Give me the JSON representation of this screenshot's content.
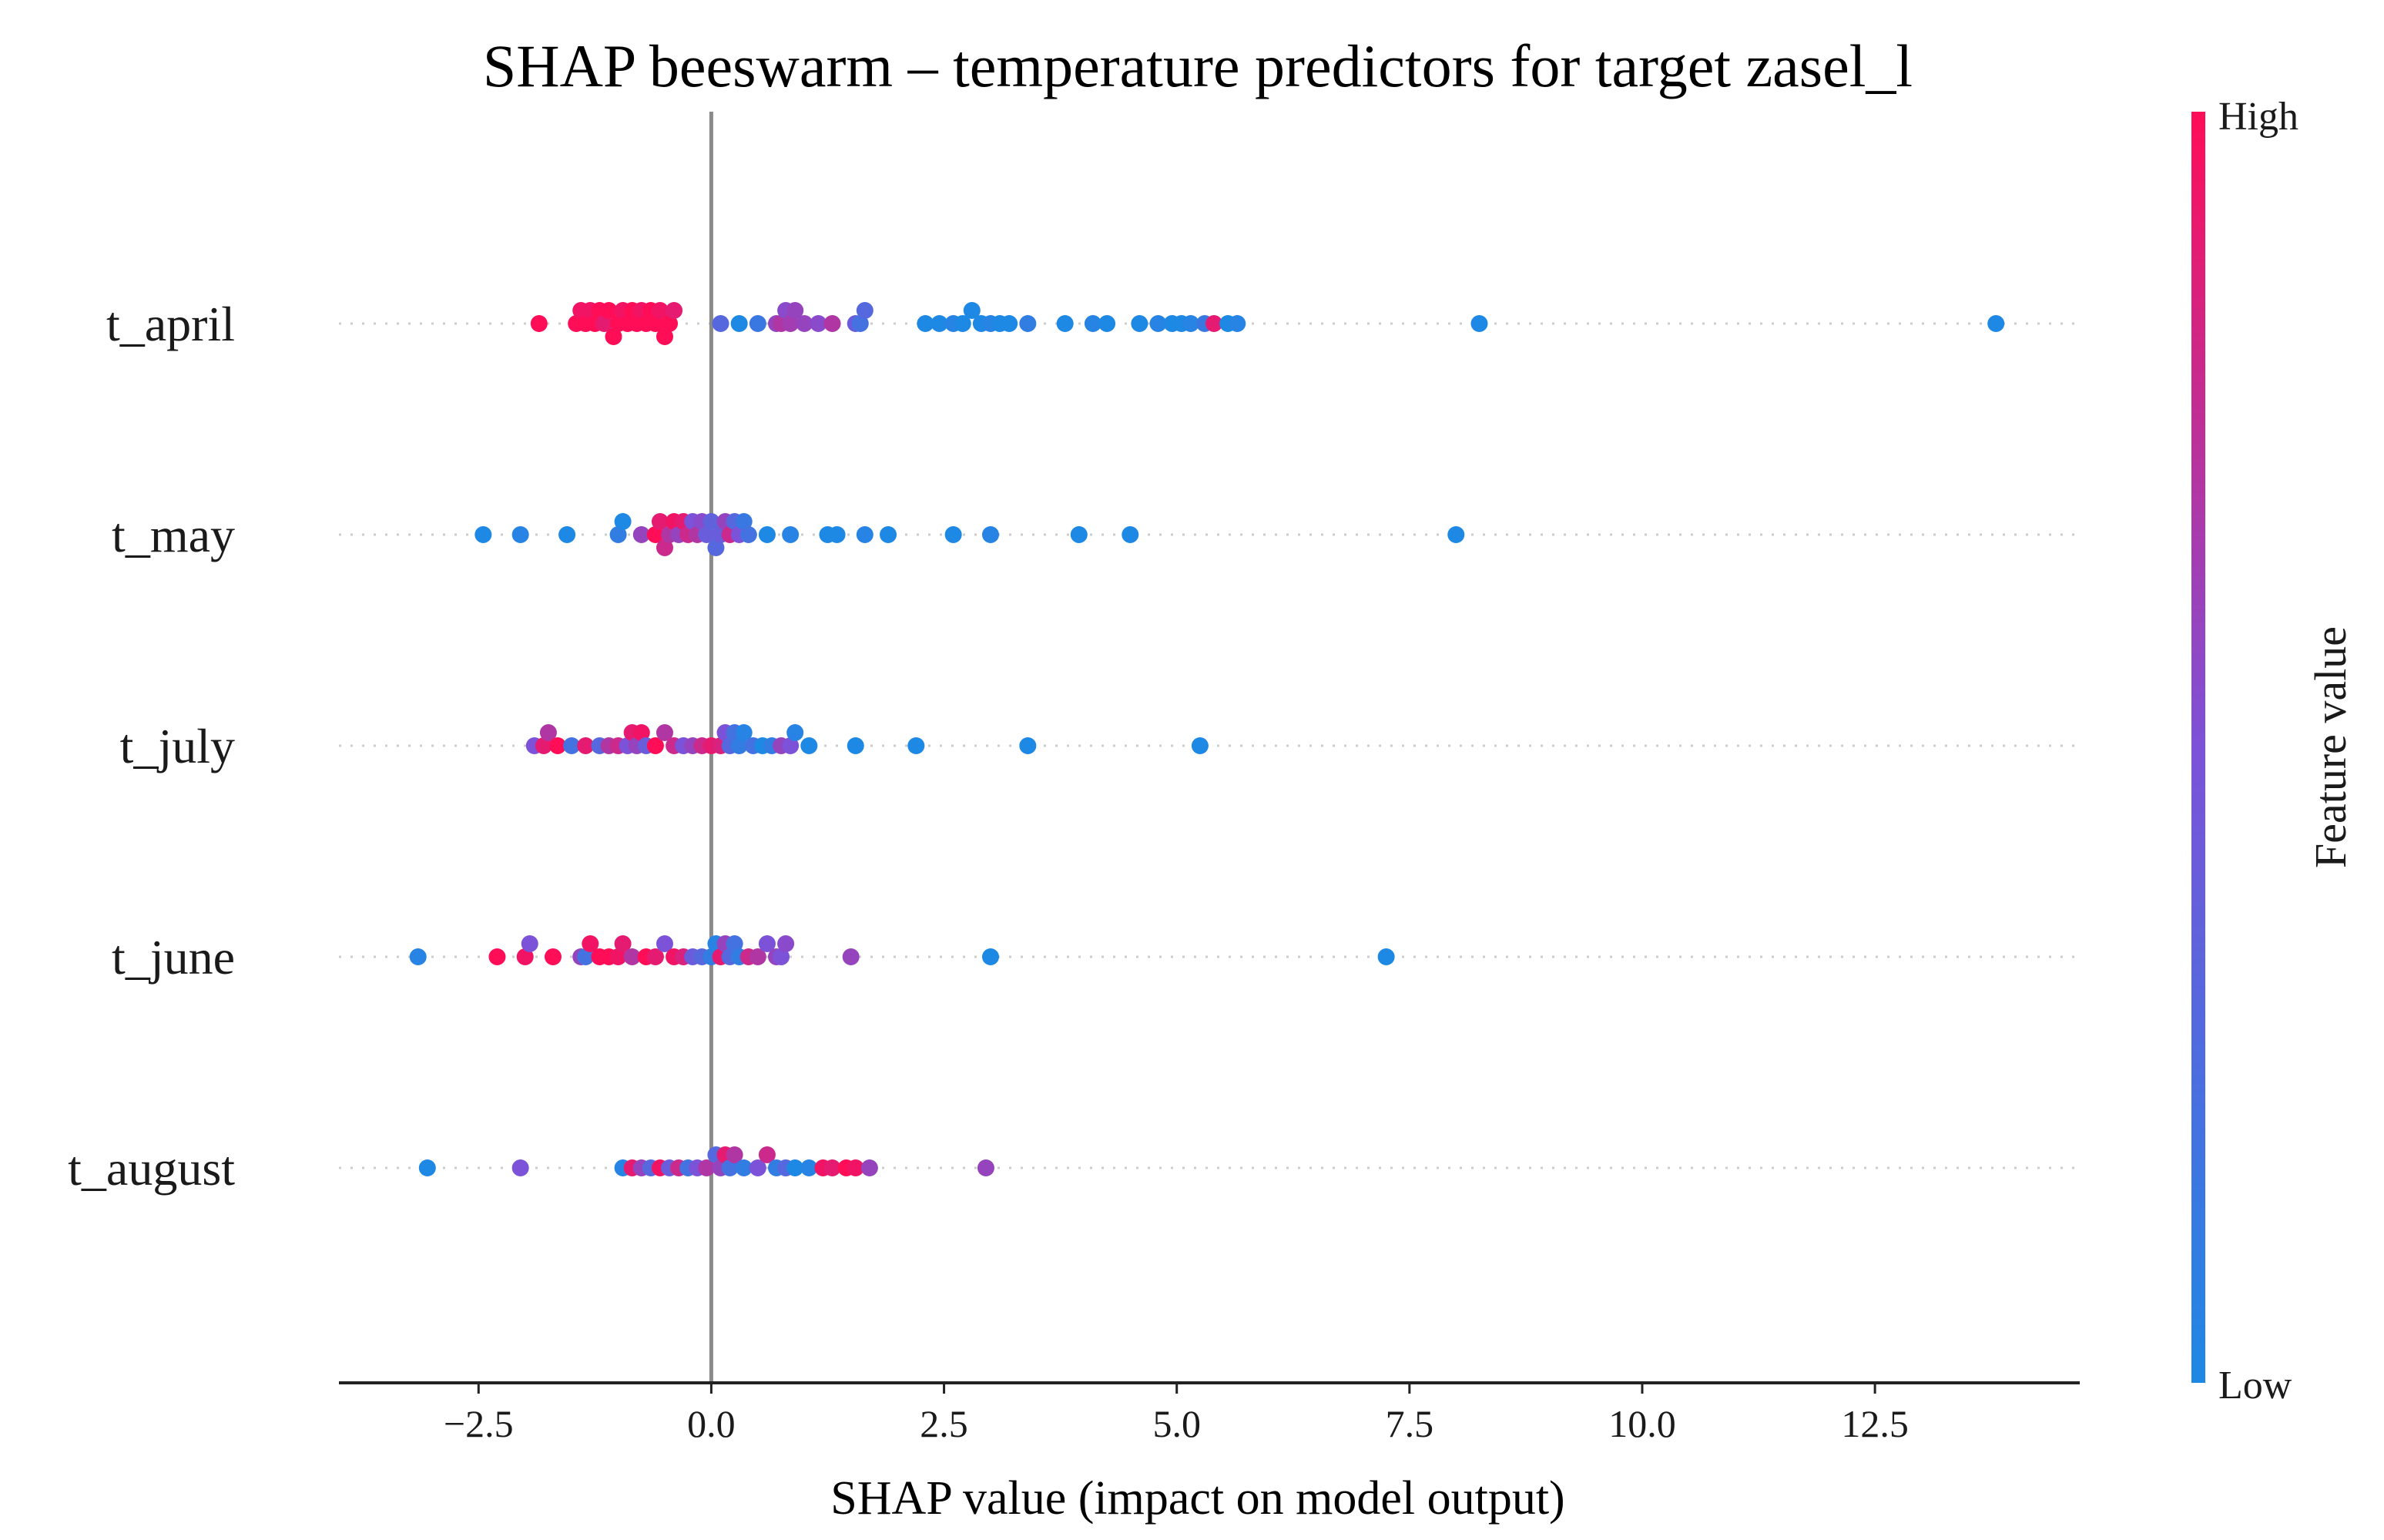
{
  "chart_data": {
    "type": "scatter",
    "subtype": "shap-beeswarm",
    "title": "SHAP beeswarm – temperature predictors for target zasel_l",
    "xlabel": "SHAP value (impact on model output)",
    "xlim": [
      -4.0,
      14.7
    ],
    "xticks": [
      -2.5,
      0.0,
      2.5,
      5.0,
      7.5,
      10.0,
      12.5
    ],
    "xtick_labels": [
      "−2.5",
      "0.0",
      "2.5",
      "5.0",
      "7.5",
      "10.0",
      "12.5"
    ],
    "colorbar": {
      "label": "Feature value",
      "high_label": "High",
      "low_label": "Low",
      "low_color": "#1e88e5",
      "high_color": "#ff0d57"
    },
    "features": [
      {
        "name": "t_april",
        "points": [
          [
            -1.85,
            1
          ],
          [
            -1.45,
            1
          ],
          [
            -1.4,
            0.95
          ],
          [
            -1.35,
            1
          ],
          [
            -1.3,
            0.95
          ],
          [
            -1.25,
            1
          ],
          [
            -1.2,
            1
          ],
          [
            -1.15,
            0.9
          ],
          [
            -1.1,
            1
          ],
          [
            -1.05,
            1
          ],
          [
            -1.0,
            1
          ],
          [
            -0.95,
            0.95
          ],
          [
            -0.9,
            1
          ],
          [
            -0.85,
            1
          ],
          [
            -0.8,
            1
          ],
          [
            -0.75,
            0.95
          ],
          [
            -0.7,
            1
          ],
          [
            -0.65,
            1
          ],
          [
            -0.6,
            1
          ],
          [
            -0.55,
            0.95
          ],
          [
            -0.5,
            1
          ],
          [
            -0.45,
            1
          ],
          [
            -0.4,
            0.9
          ],
          [
            0.1,
            0.3
          ],
          [
            0.3,
            0.0
          ],
          [
            0.5,
            0.15
          ],
          [
            0.7,
            0.6
          ],
          [
            0.75,
            0.7
          ],
          [
            0.8,
            0.55
          ],
          [
            0.85,
            0.65
          ],
          [
            0.9,
            0.6
          ],
          [
            1.0,
            0.6
          ],
          [
            1.15,
            0.55
          ],
          [
            1.3,
            0.7
          ],
          [
            1.55,
            0.4
          ],
          [
            1.6,
            0.2
          ],
          [
            1.65,
            0.3
          ],
          [
            2.3,
            0.0
          ],
          [
            2.45,
            0.0
          ],
          [
            2.6,
            0.05
          ],
          [
            2.7,
            0.0
          ],
          [
            2.8,
            0.0
          ],
          [
            2.9,
            0.0
          ],
          [
            3.0,
            0.05
          ],
          [
            3.1,
            0.0
          ],
          [
            3.2,
            0.0
          ],
          [
            3.4,
            0.1
          ],
          [
            3.8,
            0.0
          ],
          [
            4.1,
            0.05
          ],
          [
            4.25,
            0.0
          ],
          [
            4.6,
            0.0
          ],
          [
            4.8,
            0.05
          ],
          [
            4.95,
            0.0
          ],
          [
            5.05,
            0.0
          ],
          [
            5.15,
            0.05
          ],
          [
            5.3,
            0.15
          ],
          [
            5.4,
            0.9
          ],
          [
            5.55,
            0.0
          ],
          [
            5.65,
            0.05
          ],
          [
            8.25,
            0.0
          ],
          [
            13.8,
            0.0
          ]
        ]
      },
      {
        "name": "t_may",
        "points": [
          [
            -2.45,
            0.0
          ],
          [
            -2.05,
            0.05
          ],
          [
            -1.55,
            0.0
          ],
          [
            -1.0,
            0.1
          ],
          [
            -0.95,
            0.0
          ],
          [
            -0.75,
            0.6
          ],
          [
            -0.6,
            1.0
          ],
          [
            -0.55,
            0.9
          ],
          [
            -0.5,
            0.8
          ],
          [
            -0.45,
            0.7
          ],
          [
            -0.4,
            0.95
          ],
          [
            -0.35,
            0.6
          ],
          [
            -0.3,
            0.9
          ],
          [
            -0.25,
            0.8
          ],
          [
            -0.2,
            0.5
          ],
          [
            -0.15,
            0.7
          ],
          [
            -0.1,
            0.55
          ],
          [
            -0.05,
            0.4
          ],
          [
            0.0,
            0.35
          ],
          [
            0.05,
            0.3
          ],
          [
            0.1,
            0.4
          ],
          [
            0.15,
            0.6
          ],
          [
            0.2,
            0.8
          ],
          [
            0.25,
            0.3
          ],
          [
            0.3,
            0.5
          ],
          [
            0.35,
            0.15
          ],
          [
            0.4,
            0.2
          ],
          [
            0.6,
            0.0
          ],
          [
            0.85,
            0.05
          ],
          [
            1.25,
            0.0
          ],
          [
            1.35,
            0.0
          ],
          [
            1.65,
            0.05
          ],
          [
            1.9,
            0.0
          ],
          [
            2.6,
            0.0
          ],
          [
            3.0,
            0.05
          ],
          [
            3.95,
            0.0
          ],
          [
            4.5,
            0.0
          ],
          [
            8.0,
            0.0
          ]
        ]
      },
      {
        "name": "t_july",
        "points": [
          [
            -1.9,
            0.5
          ],
          [
            -1.8,
            0.9
          ],
          [
            -1.75,
            0.7
          ],
          [
            -1.65,
            1.0
          ],
          [
            -1.5,
            0.2
          ],
          [
            -1.35,
            0.9
          ],
          [
            -1.2,
            0.3
          ],
          [
            -1.1,
            0.7
          ],
          [
            -1.0,
            0.8
          ],
          [
            -0.9,
            0.5
          ],
          [
            -0.85,
            0.9
          ],
          [
            -0.8,
            0.6
          ],
          [
            -0.75,
            0.95
          ],
          [
            -0.7,
            0.4
          ],
          [
            -0.6,
            1.0
          ],
          [
            -0.5,
            0.7
          ],
          [
            -0.4,
            0.8
          ],
          [
            -0.3,
            0.5
          ],
          [
            -0.2,
            0.6
          ],
          [
            -0.1,
            0.8
          ],
          [
            0.0,
            0.9
          ],
          [
            0.1,
            0.85
          ],
          [
            0.15,
            0.5
          ],
          [
            0.2,
            0.3
          ],
          [
            0.25,
            0.2
          ],
          [
            0.3,
            0.1
          ],
          [
            0.35,
            0.05
          ],
          [
            0.45,
            0.2
          ],
          [
            0.55,
            0.0
          ],
          [
            0.65,
            0.1
          ],
          [
            0.75,
            0.6
          ],
          [
            0.85,
            0.5
          ],
          [
            0.9,
            0.05
          ],
          [
            1.05,
            0.0
          ],
          [
            1.55,
            0.0
          ],
          [
            2.2,
            0.0
          ],
          [
            3.4,
            0.0
          ],
          [
            5.25,
            0.0
          ]
        ]
      },
      {
        "name": "t_june",
        "points": [
          [
            -3.15,
            0.05
          ],
          [
            -2.3,
            1.0
          ],
          [
            -2.0,
            0.95
          ],
          [
            -1.95,
            0.5
          ],
          [
            -1.7,
            1.0
          ],
          [
            -1.4,
            0.6
          ],
          [
            -1.35,
            0.2
          ],
          [
            -1.3,
            0.95
          ],
          [
            -1.2,
            1.0
          ],
          [
            -1.1,
            1.0
          ],
          [
            -1.0,
            0.95
          ],
          [
            -0.95,
            0.9
          ],
          [
            -0.85,
            0.7
          ],
          [
            -0.7,
            1.0
          ],
          [
            -0.6,
            0.9
          ],
          [
            -0.5,
            0.5
          ],
          [
            -0.4,
            0.95
          ],
          [
            -0.3,
            0.85
          ],
          [
            -0.2,
            0.4
          ],
          [
            -0.1,
            0.3
          ],
          [
            0.0,
            0.1
          ],
          [
            0.05,
            0.05
          ],
          [
            0.1,
            0.9
          ],
          [
            0.15,
            0.6
          ],
          [
            0.2,
            0.3
          ],
          [
            0.25,
            0.2
          ],
          [
            0.3,
            0.1
          ],
          [
            0.4,
            0.8
          ],
          [
            0.5,
            0.7
          ],
          [
            0.6,
            0.5
          ],
          [
            0.7,
            0.6
          ],
          [
            0.75,
            0.5
          ],
          [
            0.8,
            0.55
          ],
          [
            1.5,
            0.6
          ],
          [
            3.0,
            0.0
          ],
          [
            7.25,
            0.0
          ]
        ]
      },
      {
        "name": "t_august",
        "points": [
          [
            -3.05,
            0.0
          ],
          [
            -2.05,
            0.5
          ],
          [
            -0.95,
            0.05
          ],
          [
            -0.85,
            0.9
          ],
          [
            -0.75,
            0.6
          ],
          [
            -0.65,
            0.3
          ],
          [
            -0.55,
            0.95
          ],
          [
            -0.45,
            0.4
          ],
          [
            -0.35,
            0.8
          ],
          [
            -0.25,
            0.2
          ],
          [
            -0.15,
            0.5
          ],
          [
            -0.05,
            0.7
          ],
          [
            0.05,
            0.3
          ],
          [
            0.1,
            0.6
          ],
          [
            0.15,
            0.9
          ],
          [
            0.2,
            0.2
          ],
          [
            0.25,
            0.7
          ],
          [
            0.35,
            0.1
          ],
          [
            0.5,
            0.5
          ],
          [
            0.6,
            0.8
          ],
          [
            0.7,
            0.1
          ],
          [
            0.8,
            0.3
          ],
          [
            0.9,
            0.0
          ],
          [
            1.05,
            0.05
          ],
          [
            1.2,
            0.95
          ],
          [
            1.3,
            0.9
          ],
          [
            1.45,
            1.0
          ],
          [
            1.55,
            0.95
          ],
          [
            1.7,
            0.6
          ],
          [
            2.95,
            0.6
          ]
        ]
      }
    ]
  }
}
